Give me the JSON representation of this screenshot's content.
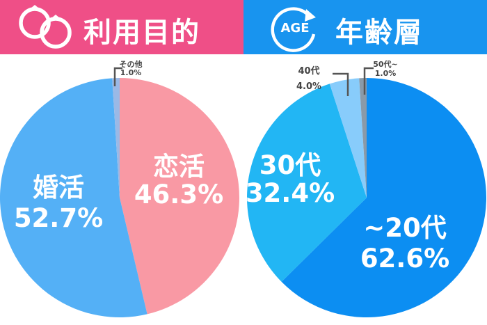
{
  "panels": {
    "left": {
      "title": "利用目的",
      "icon": "rings-icon",
      "color": "#ef4f87"
    },
    "right": {
      "title": "年齢層",
      "icon": "age-cycle-icon",
      "icon_text": "AGE",
      "color": "#1894ef"
    }
  },
  "chart_data": [
    {
      "type": "pie",
      "title": "利用目的",
      "slices": [
        {
          "label": "恋活",
          "value": 46.3,
          "value_label": "46.3%",
          "color": "#f999a4",
          "label_placement": "inside"
        },
        {
          "label": "婚活",
          "value": 52.7,
          "value_label": "52.7%",
          "color": "#54b0f6",
          "label_placement": "inside"
        },
        {
          "label": "その他",
          "value": 1.0,
          "value_label": "1.0%",
          "color": "#9ab9e6",
          "label_placement": "callout"
        }
      ]
    },
    {
      "type": "pie",
      "title": "年齢層",
      "slices": [
        {
          "label": "~20代",
          "value": 62.6,
          "value_label": "62.6%",
          "color": "#0c8ef2",
          "label_placement": "inside"
        },
        {
          "label": "30代",
          "value": 32.4,
          "value_label": "32.4%",
          "color": "#22b6f4",
          "label_placement": "inside"
        },
        {
          "label": "40代",
          "value": 4.0,
          "value_label": "4.0%",
          "color": "#88ccfb",
          "label_placement": "callout"
        },
        {
          "label": "50代~",
          "value": 1.0,
          "value_label": "1.0%",
          "color": "#8a9aa8",
          "label_placement": "callout"
        }
      ]
    }
  ]
}
